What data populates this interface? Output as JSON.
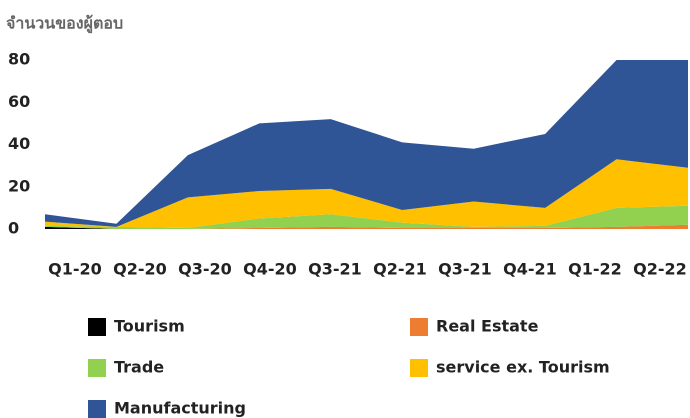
{
  "chart_data": {
    "type": "stacked_area",
    "y_label": "จำนวนของผู้ตอบ",
    "categories": [
      "Q1-20",
      "Q2-20",
      "Q3-20",
      "Q4-20",
      "Q3-21",
      "Q2-21",
      "Q3-21",
      "Q4-21",
      "Q1-22",
      "Q2-22"
    ],
    "series": [
      {
        "name": "Tourism",
        "color": "#000000",
        "values": [
          1,
          0,
          0,
          0,
          0,
          0,
          0,
          0,
          0,
          0
        ]
      },
      {
        "name": "Real Estate",
        "color": "#ed7d31",
        "values": [
          0,
          0,
          0,
          0.5,
          1,
          0.5,
          0.5,
          0.5,
          1,
          2
        ]
      },
      {
        "name": "Trade",
        "color": "#92d050",
        "values": [
          0.5,
          1,
          0.5,
          4.5,
          6,
          2.5,
          0.5,
          1,
          9,
          9
        ]
      },
      {
        "name": "service ex. Tourism",
        "color": "#ffc000",
        "values": [
          2,
          0,
          14.5,
          13,
          12,
          6,
          12,
          8.5,
          23,
          18
        ]
      },
      {
        "name": "Manufacturing",
        "color": "#2f5597",
        "values": [
          3.5,
          1.5,
          20,
          32,
          33,
          32,
          25,
          35,
          47,
          51
        ]
      }
    ],
    "ylim": [
      0,
      80
    ],
    "yticks": [
      0,
      20,
      40,
      60,
      80
    ],
    "grid": false
  }
}
